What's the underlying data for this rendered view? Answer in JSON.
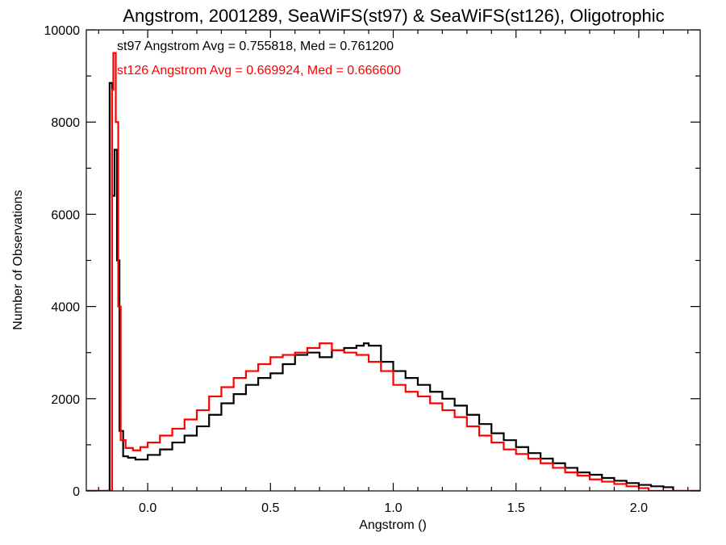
{
  "chart_data": {
    "type": "line",
    "step": true,
    "title": "Angstrom, 2001289, SeaWiFS(st97) & SeaWiFS(st126), Oligotrophic",
    "xlabel": "Angstrom ()",
    "ylabel": "Number of Observations",
    "xlim": [
      -0.25,
      2.25
    ],
    "ylim": [
      0,
      10000
    ],
    "grid": false,
    "x_ticks": [
      0.0,
      0.5,
      1.0,
      1.5,
      2.0
    ],
    "x_tick_labels": [
      "0.0",
      "0.5",
      "1.0",
      "1.5",
      "2.0"
    ],
    "y_ticks": [
      0,
      2000,
      4000,
      6000,
      8000,
      10000
    ],
    "y_tick_labels": [
      "0",
      "2000",
      "4000",
      "6000",
      "8000",
      "10000"
    ],
    "annotations": [
      {
        "text": "st97 Angstrom Avg = 0.755818, Med = 0.761200",
        "color": "#000000"
      },
      {
        "text": "st126 Angstrom Avg = 0.669924, Med = 0.666600",
        "color": "#ff0000"
      }
    ],
    "series": [
      {
        "color": "#000000",
        "x": [
          -0.25,
          -0.16,
          -0.155,
          -0.145,
          -0.135,
          -0.125,
          -0.115,
          -0.1,
          -0.08,
          -0.05,
          0.0,
          0.05,
          0.1,
          0.15,
          0.2,
          0.25,
          0.3,
          0.35,
          0.4,
          0.45,
          0.5,
          0.55,
          0.6,
          0.65,
          0.7,
          0.75,
          0.8,
          0.85,
          0.88,
          0.9,
          0.95,
          1.0,
          1.05,
          1.1,
          1.15,
          1.2,
          1.25,
          1.3,
          1.35,
          1.4,
          1.45,
          1.5,
          1.55,
          1.6,
          1.65,
          1.7,
          1.75,
          1.8,
          1.85,
          1.9,
          1.95,
          2.0,
          2.05,
          2.1,
          2.14,
          2.25
        ],
        "y": [
          0,
          0,
          8850,
          6400,
          7400,
          5000,
          1300,
          750,
          720,
          680,
          780,
          900,
          1050,
          1200,
          1400,
          1650,
          1900,
          2100,
          2300,
          2450,
          2550,
          2750,
          2950,
          3000,
          2900,
          3050,
          3100,
          3150,
          3200,
          3150,
          2800,
          2600,
          2450,
          2300,
          2150,
          2000,
          1850,
          1650,
          1450,
          1250,
          1100,
          950,
          820,
          700,
          600,
          500,
          400,
          350,
          280,
          220,
          170,
          130,
          100,
          80,
          0,
          0
        ]
      },
      {
        "color": "#ff0000",
        "x": [
          -0.25,
          -0.15,
          -0.145,
          -0.14,
          -0.13,
          -0.12,
          -0.11,
          -0.09,
          -0.06,
          -0.03,
          0.0,
          0.05,
          0.1,
          0.15,
          0.2,
          0.25,
          0.3,
          0.35,
          0.4,
          0.45,
          0.5,
          0.55,
          0.6,
          0.65,
          0.7,
          0.75,
          0.8,
          0.85,
          0.9,
          0.95,
          1.0,
          1.05,
          1.1,
          1.15,
          1.2,
          1.25,
          1.3,
          1.35,
          1.4,
          1.45,
          1.5,
          1.55,
          1.6,
          1.65,
          1.7,
          1.75,
          1.8,
          1.85,
          1.9,
          1.95,
          2.0,
          2.04,
          2.25
        ],
        "y": [
          0,
          0,
          8700,
          9500,
          8000,
          4000,
          1100,
          930,
          880,
          950,
          1050,
          1200,
          1350,
          1550,
          1750,
          2050,
          2250,
          2450,
          2600,
          2750,
          2900,
          2950,
          3000,
          3100,
          3200,
          3050,
          3000,
          2950,
          2800,
          2600,
          2300,
          2150,
          2050,
          1900,
          1750,
          1600,
          1400,
          1200,
          1050,
          900,
          800,
          700,
          600,
          500,
          400,
          330,
          250,
          200,
          150,
          100,
          60,
          0,
          0
        ]
      }
    ]
  }
}
